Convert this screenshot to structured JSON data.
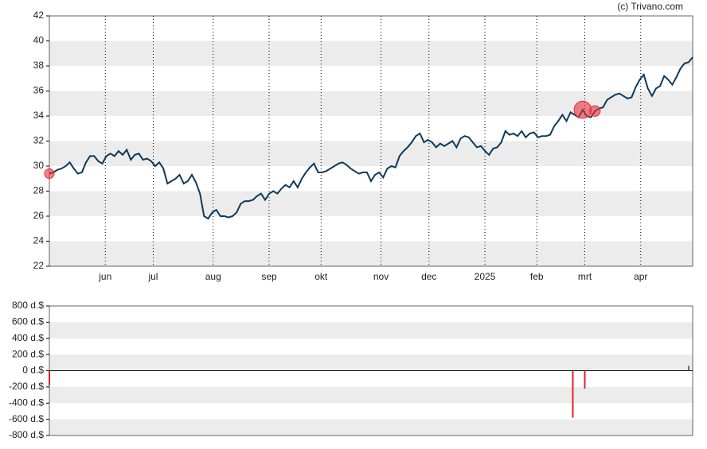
{
  "watermark": "(c) Trivano.com",
  "chart_data": [
    {
      "type": "line",
      "color": "#0e3a5a",
      "marker_color": "#e8303a",
      "bands": true,
      "xlim": [
        0,
        161
      ],
      "ylim": [
        22,
        42
      ],
      "yticks": [
        22,
        24,
        26,
        28,
        30,
        32,
        34,
        36,
        38,
        40,
        42
      ],
      "xticks": [
        {
          "value": 14,
          "label": "jun"
        },
        {
          "value": 26,
          "label": "jul"
        },
        {
          "value": 41,
          "label": "aug"
        },
        {
          "value": 55,
          "label": "sep"
        },
        {
          "value": 68,
          "label": "okt"
        },
        {
          "value": 83,
          "label": "nov"
        },
        {
          "value": 95,
          "label": "dec"
        },
        {
          "value": 109,
          "label": "2025"
        },
        {
          "value": 122,
          "label": "feb"
        },
        {
          "value": 134,
          "label": "mrt"
        },
        {
          "value": 148,
          "label": "apr"
        }
      ],
      "values": [
        29.4,
        29.5,
        29.7,
        29.8,
        30.0,
        30.3,
        29.8,
        29.4,
        29.5,
        30.3,
        30.8,
        30.8,
        30.4,
        30.2,
        30.8,
        31.0,
        30.8,
        31.2,
        30.9,
        31.3,
        30.5,
        30.9,
        31.0,
        30.5,
        30.6,
        30.4,
        30.0,
        30.3,
        29.8,
        28.6,
        28.8,
        29.0,
        29.3,
        28.6,
        28.8,
        29.3,
        28.7,
        27.8,
        26.0,
        25.8,
        26.3,
        26.5,
        26.0,
        26.0,
        25.9,
        26.0,
        26.3,
        27.0,
        27.2,
        27.2,
        27.3,
        27.6,
        27.8,
        27.3,
        27.8,
        28.0,
        27.8,
        28.2,
        28.5,
        28.3,
        28.8,
        28.3,
        29.0,
        29.5,
        29.9,
        30.2,
        29.5,
        29.5,
        29.6,
        29.8,
        30.0,
        30.2,
        30.3,
        30.1,
        29.8,
        29.6,
        29.4,
        29.5,
        29.5,
        28.8,
        29.3,
        29.5,
        29.1,
        29.8,
        30.0,
        29.9,
        30.8,
        31.2,
        31.5,
        31.9,
        32.4,
        32.6,
        31.9,
        32.1,
        31.9,
        31.5,
        31.8,
        31.6,
        31.8,
        32.0,
        31.5,
        32.2,
        32.4,
        32.3,
        31.9,
        31.5,
        31.6,
        31.2,
        30.9,
        31.4,
        31.5,
        31.9,
        32.8,
        32.5,
        32.6,
        32.4,
        32.8,
        32.3,
        32.6,
        32.7,
        32.3,
        32.4,
        32.4,
        32.5,
        33.2,
        33.6,
        34.1,
        33.6,
        34.3,
        34.1,
        33.9,
        34.5,
        34.0,
        33.9,
        34.4,
        34.6,
        34.7,
        35.3,
        35.5,
        35.7,
        35.8,
        35.6,
        35.4,
        35.5,
        36.3,
        36.9,
        37.3,
        36.2,
        35.6,
        36.2,
        36.4,
        37.2,
        36.9,
        36.5,
        37.1,
        37.8,
        38.2,
        38.3,
        38.7
      ]
    },
    {
      "type": "bar",
      "bands": true,
      "xlim": [
        0,
        161
      ],
      "ylim": [
        -800,
        800
      ],
      "yticks": [
        {
          "value": -800,
          "label": "-800 d.$"
        },
        {
          "value": -600,
          "label": "-600 d.$"
        },
        {
          "value": -400,
          "label": "-400 d.$"
        },
        {
          "value": -200,
          "label": "-200 d.$"
        },
        {
          "value": 0,
          "label": "0 d.$"
        },
        {
          "value": 200,
          "label": "200 d.$"
        },
        {
          "value": 400,
          "label": "400 d.$"
        },
        {
          "value": 600,
          "label": "600 d.$"
        },
        {
          "value": 800,
          "label": "800 d.$"
        }
      ],
      "x": [
        0,
        131,
        134,
        160
      ],
      "values": [
        -180,
        -580,
        -220,
        60
      ],
      "colors": [
        "#e0202a",
        "#e0202a",
        "#e0202a",
        "#2e8b57"
      ]
    }
  ]
}
